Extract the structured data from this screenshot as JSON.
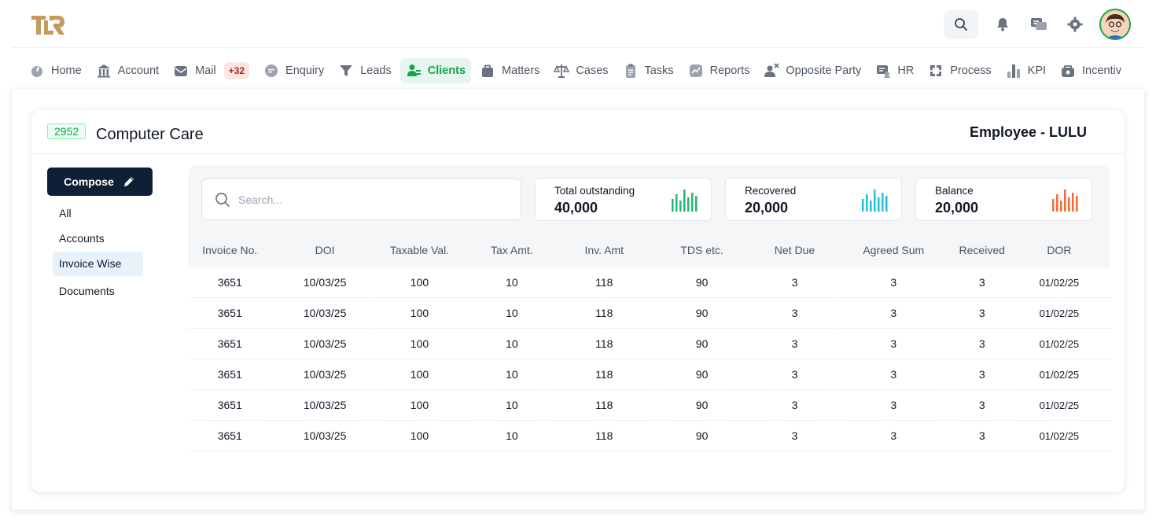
{
  "header": {
    "logo_text": "TLR",
    "icons": [
      "search-icon",
      "bell-icon",
      "chat-icon",
      "gear-icon",
      "avatar"
    ]
  },
  "nav": [
    {
      "label": "Home",
      "icon": "home-icon"
    },
    {
      "label": "Account",
      "icon": "bank-icon"
    },
    {
      "label": "Mail",
      "icon": "mail-icon",
      "badge": "+32"
    },
    {
      "label": "Enquiry",
      "icon": "chat-bubble-icon"
    },
    {
      "label": "Leads",
      "icon": "funnel-icon"
    },
    {
      "label": "Clients",
      "icon": "user-icon",
      "active": true
    },
    {
      "label": "Matters",
      "icon": "briefcase-icon"
    },
    {
      "label": "Cases",
      "icon": "scale-icon"
    },
    {
      "label": "Tasks",
      "icon": "clipboard-icon"
    },
    {
      "label": "Reports",
      "icon": "chart-icon"
    },
    {
      "label": "Opposite Party",
      "icon": "user-x-icon"
    },
    {
      "label": "HR",
      "icon": "hr-icon"
    },
    {
      "label": "Process",
      "icon": "process-icon"
    },
    {
      "label": "KPI",
      "icon": "bar-icon"
    },
    {
      "label": "Incentiv",
      "icon": "money-icon"
    }
  ],
  "client": {
    "id": "2952",
    "name": "Computer Care",
    "employee": "Employee - LULU"
  },
  "sidebar": {
    "compose_label": "Compose",
    "items": [
      "All",
      "Accounts",
      "Invoice Wise",
      "Documents"
    ],
    "active": "Invoice Wise"
  },
  "search": {
    "placeholder": "Search..."
  },
  "stats": [
    {
      "label": "Total outstanding",
      "value": "40,000",
      "color": "#22b573"
    },
    {
      "label": "Recovered",
      "value": "20,000",
      "color": "#22c1d6"
    },
    {
      "label": "Balance",
      "value": "20,000",
      "color": "#f26b3a"
    }
  ],
  "table": {
    "columns": [
      "Invoice No.",
      "DOI",
      "Taxable Val.",
      "Tax Amt.",
      "Inv. Amt",
      "TDS etc.",
      "Net Due",
      "Agreed Sum",
      "Received",
      "DOR"
    ],
    "rows": [
      [
        "3651",
        "10/03/25",
        "100",
        "10",
        "118",
        "90",
        "3",
        "3",
        "3",
        "01/02/25"
      ],
      [
        "3651",
        "10/03/25",
        "100",
        "10",
        "118",
        "90",
        "3",
        "3",
        "3",
        "01/02/25"
      ],
      [
        "3651",
        "10/03/25",
        "100",
        "10",
        "118",
        "90",
        "3",
        "3",
        "3",
        "01/02/25"
      ],
      [
        "3651",
        "10/03/25",
        "100",
        "10",
        "118",
        "90",
        "3",
        "3",
        "3",
        "01/02/25"
      ],
      [
        "3651",
        "10/03/25",
        "100",
        "10",
        "118",
        "90",
        "3",
        "3",
        "3",
        "01/02/25"
      ],
      [
        "3651",
        "10/03/25",
        "100",
        "10",
        "118",
        "90",
        "3",
        "3",
        "3",
        "01/02/25"
      ]
    ]
  }
}
